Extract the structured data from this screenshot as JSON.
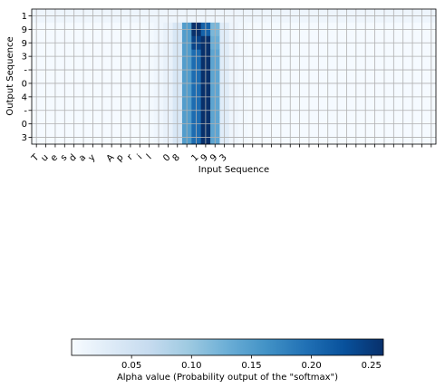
{
  "chart_data": [
    {
      "type": "heatmap",
      "title": "",
      "xlabel": "Input Sequence",
      "ylabel": "Output Sequence",
      "x_tick_labels": [
        "T",
        "u",
        "e",
        "s",
        "d",
        "a",
        "y",
        " ",
        "A",
        "p",
        "r",
        "i",
        "l",
        " ",
        "0",
        "8",
        " ",
        "1",
        "9",
        "9",
        "3",
        "",
        "",
        "",
        "",
        "",
        "",
        "",
        "",
        "",
        "",
        "",
        "",
        "",
        "",
        "",
        "",
        "",
        "",
        "",
        "",
        "",
        ""
      ],
      "y_tick_labels": [
        "1",
        "9",
        "9",
        "3",
        "-",
        "0",
        "4",
        "-",
        "0",
        "3"
      ],
      "grid": true,
      "cmap": "Blues",
      "vmin": 0,
      "vmax": 0.26,
      "values": [
        [
          0.012,
          0.012,
          0.012,
          0.012,
          0.012,
          0.012,
          0.012,
          0.012,
          0.012,
          0.012,
          0.012,
          0.012,
          0.012,
          0.012,
          0.012,
          0.012,
          0.012,
          0.012,
          0.012,
          0.012,
          0.012,
          0.012,
          0.012,
          0.012,
          0.012,
          0.012,
          0.012,
          0.012,
          0.012,
          0.012,
          0.012,
          0.012,
          0.012,
          0.012,
          0.012,
          0.012,
          0.012,
          0.012,
          0.012,
          0.012,
          0.012,
          0.012,
          0.012
        ],
        [
          0.002,
          0.002,
          0.002,
          0.002,
          0.002,
          0.002,
          0.002,
          0.002,
          0.002,
          0.002,
          0.002,
          0.003,
          0.005,
          0.01,
          0.02,
          0.04,
          0.15,
          0.26,
          0.21,
          0.12,
          0.03,
          0.012,
          0.006,
          0.003,
          0.002,
          0.002,
          0.002,
          0.002,
          0.002,
          0.002,
          0.002,
          0.002,
          0.002,
          0.002,
          0.002,
          0.002,
          0.002,
          0.002,
          0.002,
          0.002,
          0.002,
          0.002,
          0.002
        ],
        [
          0.002,
          0.002,
          0.002,
          0.002,
          0.002,
          0.002,
          0.002,
          0.002,
          0.002,
          0.002,
          0.002,
          0.003,
          0.005,
          0.01,
          0.02,
          0.04,
          0.15,
          0.24,
          0.26,
          0.13,
          0.03,
          0.012,
          0.006,
          0.003,
          0.002,
          0.002,
          0.002,
          0.002,
          0.002,
          0.002,
          0.002,
          0.002,
          0.002,
          0.002,
          0.002,
          0.002,
          0.002,
          0.002,
          0.002,
          0.002,
          0.002,
          0.002,
          0.002
        ],
        [
          0.002,
          0.002,
          0.002,
          0.002,
          0.002,
          0.002,
          0.002,
          0.002,
          0.002,
          0.002,
          0.002,
          0.003,
          0.005,
          0.01,
          0.02,
          0.04,
          0.15,
          0.2,
          0.26,
          0.14,
          0.03,
          0.012,
          0.006,
          0.003,
          0.002,
          0.002,
          0.002,
          0.002,
          0.002,
          0.002,
          0.002,
          0.002,
          0.002,
          0.002,
          0.002,
          0.002,
          0.002,
          0.002,
          0.002,
          0.002,
          0.002,
          0.002,
          0.002
        ],
        [
          0.002,
          0.002,
          0.002,
          0.002,
          0.002,
          0.002,
          0.002,
          0.002,
          0.002,
          0.002,
          0.002,
          0.003,
          0.005,
          0.01,
          0.02,
          0.04,
          0.15,
          0.2,
          0.26,
          0.14,
          0.03,
          0.012,
          0.006,
          0.003,
          0.002,
          0.002,
          0.002,
          0.002,
          0.002,
          0.002,
          0.002,
          0.002,
          0.002,
          0.002,
          0.002,
          0.002,
          0.002,
          0.002,
          0.002,
          0.002,
          0.002,
          0.002,
          0.002
        ],
        [
          0.002,
          0.002,
          0.002,
          0.002,
          0.002,
          0.002,
          0.002,
          0.002,
          0.002,
          0.002,
          0.002,
          0.003,
          0.005,
          0.01,
          0.02,
          0.04,
          0.15,
          0.2,
          0.26,
          0.14,
          0.03,
          0.012,
          0.006,
          0.003,
          0.002,
          0.002,
          0.002,
          0.002,
          0.002,
          0.002,
          0.002,
          0.002,
          0.002,
          0.002,
          0.002,
          0.002,
          0.002,
          0.002,
          0.002,
          0.002,
          0.002,
          0.002,
          0.002
        ],
        [
          0.002,
          0.002,
          0.002,
          0.002,
          0.002,
          0.002,
          0.002,
          0.002,
          0.002,
          0.002,
          0.002,
          0.003,
          0.005,
          0.01,
          0.02,
          0.04,
          0.15,
          0.2,
          0.26,
          0.14,
          0.03,
          0.012,
          0.006,
          0.003,
          0.002,
          0.002,
          0.002,
          0.002,
          0.002,
          0.002,
          0.002,
          0.002,
          0.002,
          0.002,
          0.002,
          0.002,
          0.002,
          0.002,
          0.002,
          0.002,
          0.002,
          0.002,
          0.002
        ],
        [
          0.002,
          0.002,
          0.002,
          0.002,
          0.002,
          0.002,
          0.002,
          0.002,
          0.002,
          0.002,
          0.002,
          0.003,
          0.005,
          0.01,
          0.02,
          0.04,
          0.15,
          0.2,
          0.26,
          0.14,
          0.03,
          0.012,
          0.006,
          0.003,
          0.002,
          0.002,
          0.002,
          0.002,
          0.002,
          0.002,
          0.002,
          0.002,
          0.002,
          0.002,
          0.002,
          0.002,
          0.002,
          0.002,
          0.002,
          0.002,
          0.002,
          0.002,
          0.002
        ],
        [
          0.002,
          0.002,
          0.002,
          0.002,
          0.002,
          0.002,
          0.002,
          0.002,
          0.002,
          0.002,
          0.002,
          0.003,
          0.005,
          0.01,
          0.02,
          0.04,
          0.15,
          0.2,
          0.26,
          0.14,
          0.03,
          0.012,
          0.006,
          0.003,
          0.002,
          0.002,
          0.002,
          0.002,
          0.002,
          0.002,
          0.002,
          0.002,
          0.002,
          0.002,
          0.002,
          0.002,
          0.002,
          0.002,
          0.002,
          0.002,
          0.002,
          0.002,
          0.002
        ],
        [
          0.002,
          0.002,
          0.002,
          0.002,
          0.002,
          0.002,
          0.002,
          0.002,
          0.002,
          0.002,
          0.002,
          0.003,
          0.005,
          0.01,
          0.02,
          0.04,
          0.15,
          0.2,
          0.26,
          0.14,
          0.03,
          0.012,
          0.006,
          0.003,
          0.002,
          0.002,
          0.002,
          0.002,
          0.002,
          0.002,
          0.002,
          0.002,
          0.002,
          0.002,
          0.002,
          0.002,
          0.002,
          0.002,
          0.002,
          0.002,
          0.002,
          0.002,
          0.002
        ]
      ]
    },
    {
      "type": "colorbar",
      "label": "Alpha value (Probability output of the \"softmax\")",
      "orientation": "horizontal",
      "cmap": "Blues",
      "range": [
        0,
        0.26
      ],
      "tick_values": [
        0.05,
        0.1,
        0.15,
        0.2,
        0.25
      ],
      "tick_labels": [
        "0.05",
        "0.10",
        "0.15",
        "0.20",
        "0.25"
      ]
    }
  ]
}
